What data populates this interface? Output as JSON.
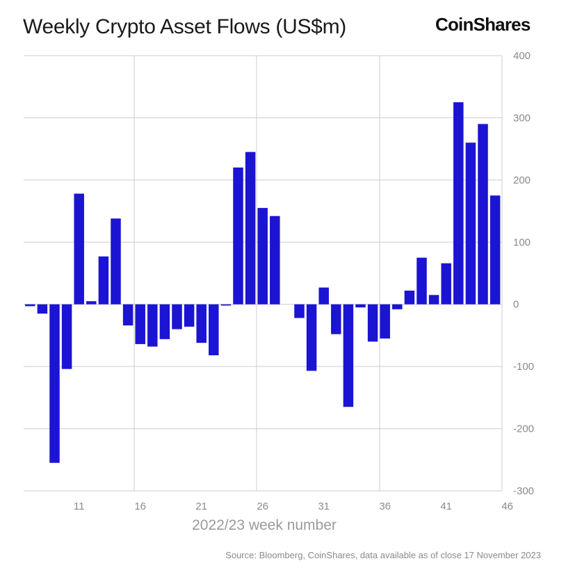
{
  "header": {
    "title": "Weekly Crypto Asset Flows (US$m)",
    "logo_text": "CoinShares"
  },
  "footer": {
    "source": "Source: Bloomberg, CoinShares, data available as of close 17 November 2023"
  },
  "colors": {
    "bar": "#1c14d3",
    "grid": "#cccccc",
    "axis_text": "#8a8a8a"
  },
  "chart_data": {
    "type": "bar",
    "title": "Weekly Crypto Asset Flows (US$m)",
    "xlabel": "2022/23 week number",
    "ylabel": "",
    "ylim": [
      -300,
      400
    ],
    "yticks": [
      -300,
      -200,
      -100,
      0,
      100,
      200,
      300,
      400
    ],
    "xticks": [
      11,
      16,
      21,
      26,
      31,
      36,
      41,
      46
    ],
    "grid": true,
    "y_axis_side": "right",
    "categories": [
      7,
      8,
      9,
      10,
      11,
      12,
      13,
      14,
      15,
      16,
      17,
      18,
      19,
      20,
      21,
      22,
      23,
      24,
      25,
      26,
      27,
      28,
      29,
      30,
      31,
      32,
      33,
      34,
      35,
      36,
      37,
      38,
      39,
      40,
      41,
      42,
      43,
      44,
      45,
      46
    ],
    "values": [
      -3,
      -15,
      -255,
      -104,
      178,
      5,
      77,
      138,
      -34,
      -64,
      -68,
      -56,
      -40,
      -36,
      -62,
      -82,
      -2,
      220,
      245,
      155,
      142,
      0,
      -22,
      -107,
      27,
      -48,
      -165,
      -5,
      -60,
      -55,
      -8,
      22,
      75,
      15,
      66,
      325,
      260,
      290,
      175,
      0
    ],
    "series": [
      {
        "name": "",
        "color": "#1c14d3"
      }
    ]
  }
}
